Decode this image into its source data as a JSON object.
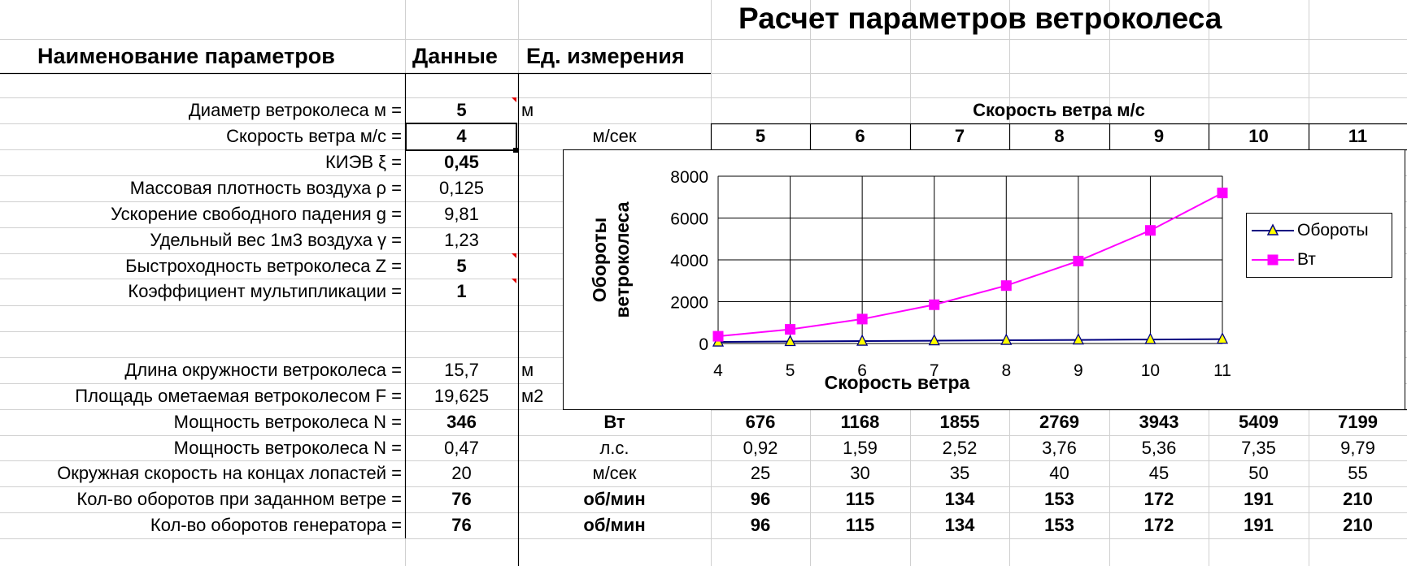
{
  "sheet": {
    "title": "Расчет параметров ветроколеса",
    "headers": {
      "name": "Наименование параметров",
      "data": "Данные",
      "unit": "Ед. измерения"
    },
    "params": [
      {
        "label": "Диаметр ветроколеса м =",
        "value": "5",
        "unit": "м"
      },
      {
        "label": "Скорость ветра м/с =",
        "value": "4",
        "unit": "м/сек"
      },
      {
        "label": "КИЭВ ξ =",
        "value": "0,45",
        "unit": ""
      },
      {
        "label": "Массовая плотность воздуха ρ =",
        "value": "0,125",
        "unit": ""
      },
      {
        "label": "Ускорение свободного падения g =",
        "value": "9,81",
        "unit": ""
      },
      {
        "label": "Удельный вес 1м3 воздуха γ =",
        "value": "1,23",
        "unit": ""
      },
      {
        "label": "Быстроходность ветроколеса Z =",
        "value": "5",
        "unit": ""
      },
      {
        "label": "Коэффициент мультипликации =",
        "value": "1",
        "unit": ""
      }
    ],
    "calc": [
      {
        "label": "Длина окружности ветроколеса =",
        "value": "15,7",
        "unit": "м"
      },
      {
        "label": "Площадь ометаемая ветроколесом F =",
        "value": "19,625",
        "unit": "м2"
      },
      {
        "label": "Мощность ветроколеса N =",
        "value": "346",
        "unit": "Вт"
      },
      {
        "label": "Мощность ветроколеса N =",
        "value": "0,47",
        "unit": "л.с."
      },
      {
        "label": "Окружная скорость на концах лопастей =",
        "value": "20",
        "unit": "м/сек"
      },
      {
        "label": "Кол-во оборотов при заданном ветре =",
        "value": "76",
        "unit": "об/мин"
      },
      {
        "label": "Кол-во оборотов генератора =",
        "value": "76",
        "unit": "об/мин"
      }
    ],
    "speed_table": {
      "header": "Скорость ветра м/с",
      "speeds": [
        "5",
        "6",
        "7",
        "8",
        "9",
        "10",
        "11"
      ],
      "rows": [
        [
          "676",
          "1168",
          "1855",
          "2769",
          "3943",
          "5409",
          "7199"
        ],
        [
          "0,92",
          "1,59",
          "2,52",
          "3,76",
          "5,36",
          "7,35",
          "9,79"
        ],
        [
          "25",
          "30",
          "35",
          "40",
          "45",
          "50",
          "55"
        ],
        [
          "96",
          "115",
          "134",
          "153",
          "172",
          "191",
          "210"
        ],
        [
          "96",
          "115",
          "134",
          "153",
          "172",
          "191",
          "210"
        ]
      ]
    }
  },
  "chart_data": {
    "type": "line",
    "x": [
      4,
      5,
      6,
      7,
      8,
      9,
      10,
      11
    ],
    "series": [
      {
        "name": "Обороты",
        "values": [
          76,
          96,
          115,
          134,
          153,
          172,
          191,
          210
        ],
        "color": "#000080",
        "marker": "triangle",
        "marker_color": "#ffff00"
      },
      {
        "name": "Вт",
        "values": [
          346,
          676,
          1168,
          1855,
          2769,
          3943,
          5409,
          7199
        ],
        "color": "#ff00ff",
        "marker": "square",
        "marker_color": "#ff00ff"
      }
    ],
    "xlabel": "Скорость ветра",
    "ylabel_lines": [
      "Обороты",
      "ветроколеса"
    ],
    "ylim": [
      0,
      8000
    ],
    "yticks": [
      0,
      2000,
      4000,
      6000,
      8000
    ],
    "xticks": [
      4,
      5,
      6,
      7,
      8,
      9,
      10,
      11
    ],
    "grid": true,
    "legend_position": "right"
  }
}
